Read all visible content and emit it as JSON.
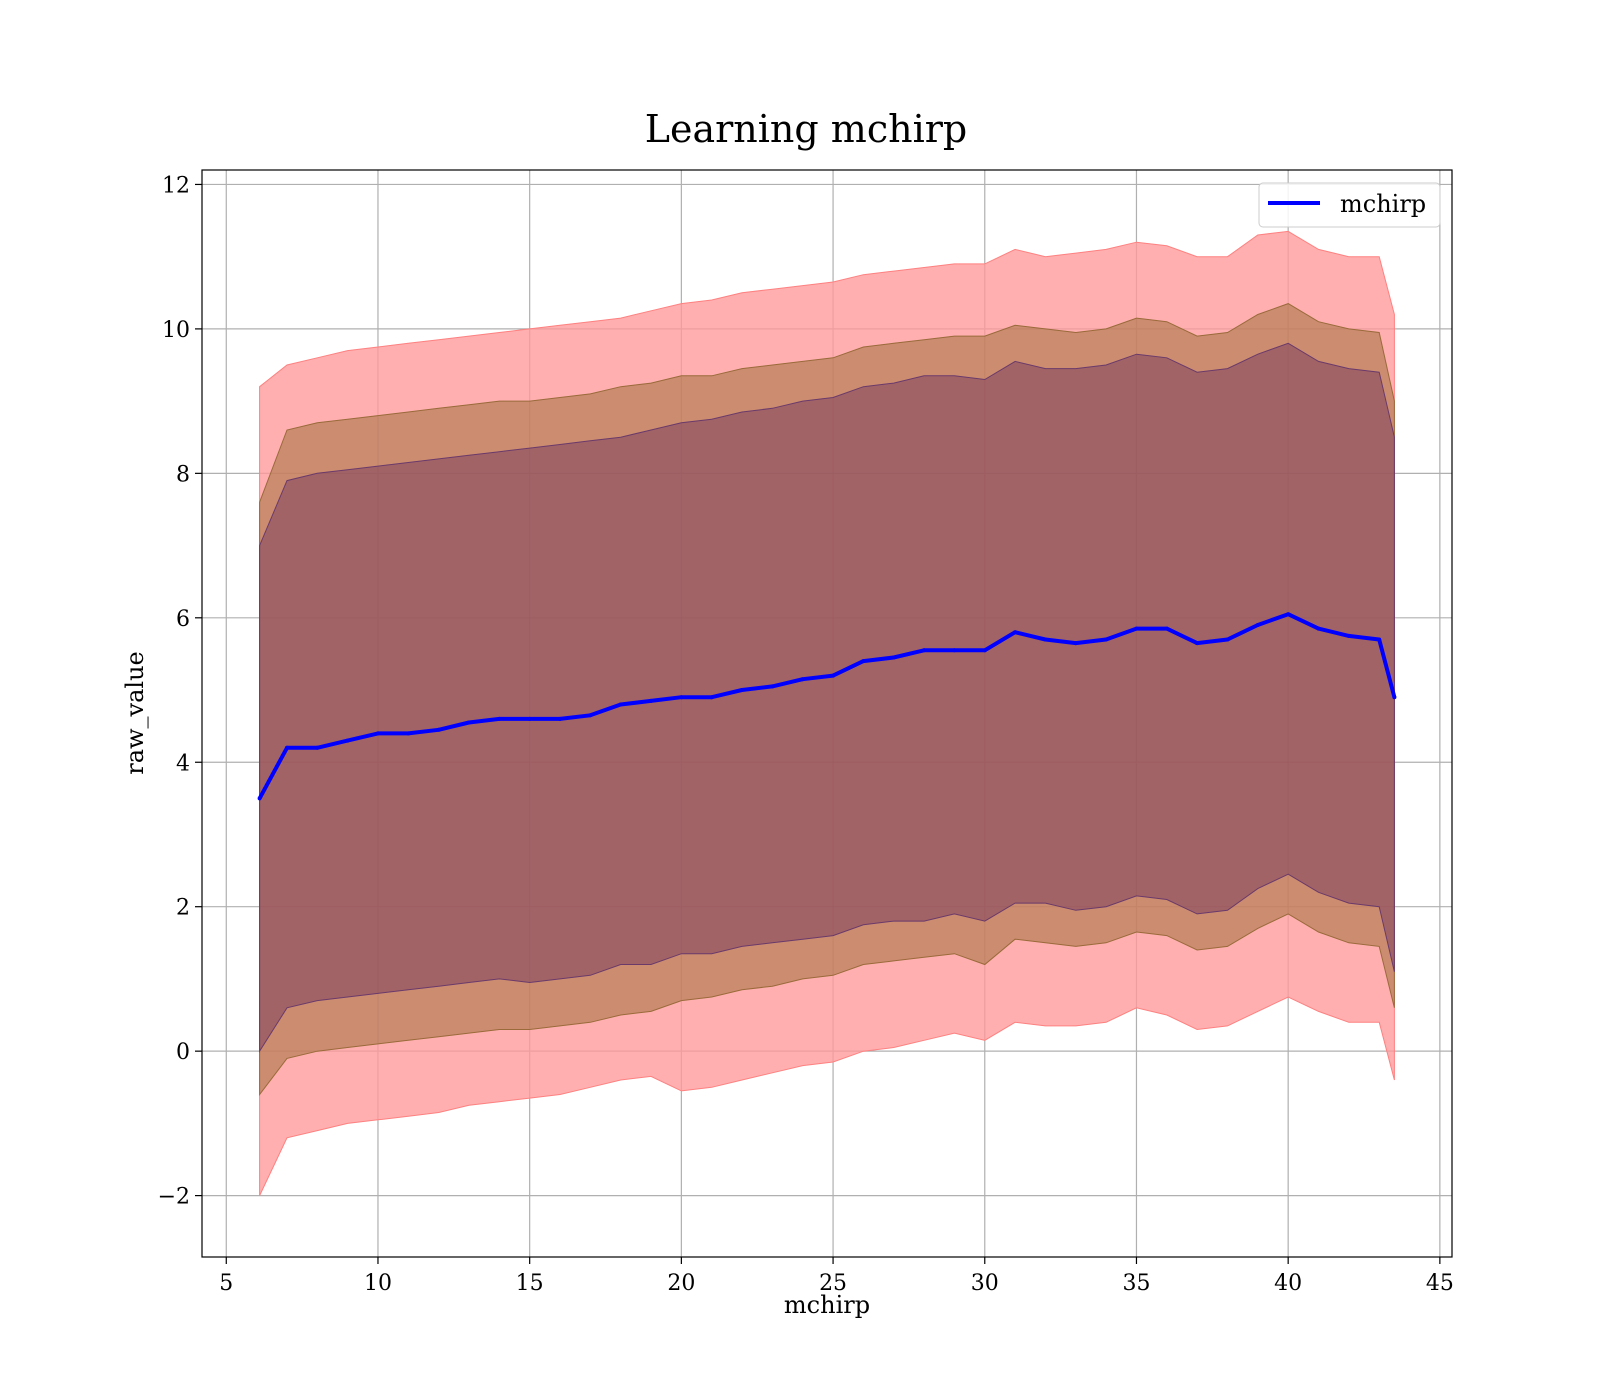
{
  "chart_data": {
    "type": "line",
    "title": "Learning mchirp",
    "xlabel": "mchirp",
    "ylabel": "raw_value",
    "xlim": [
      4.2,
      45.4
    ],
    "ylim": [
      -2.85,
      12.2
    ],
    "xticks": [
      5,
      10,
      15,
      20,
      25,
      30,
      35,
      40,
      45
    ],
    "yticks": [
      -2,
      0,
      2,
      4,
      6,
      8,
      10,
      12
    ],
    "xtick_labels": [
      "5",
      "10",
      "15",
      "20",
      "25",
      "30",
      "35",
      "40",
      "45"
    ],
    "ytick_labels": [
      "−2",
      "0",
      "2",
      "4",
      "6",
      "8",
      "10",
      "12"
    ],
    "grid": true,
    "legend": {
      "position": "top-right",
      "entries": [
        "mchirp"
      ]
    },
    "colors": {
      "line": "#0000ff",
      "band_outer": "#ff9999",
      "band_middle": "#a0703c",
      "band_inner": "#6a2a5a"
    },
    "x": [
      6.1,
      7,
      8,
      9,
      10,
      11,
      12,
      13,
      14,
      15,
      16,
      17,
      18,
      19,
      20,
      21,
      22,
      23,
      24,
      25,
      26,
      27,
      28,
      29,
      30,
      31,
      32,
      33,
      34,
      35,
      36,
      37,
      38,
      39,
      40,
      41,
      42,
      43,
      43.5
    ],
    "series": [
      {
        "name": "mchirp",
        "values": [
          3.5,
          4.2,
          4.2,
          4.3,
          4.4,
          4.4,
          4.45,
          4.55,
          4.6,
          4.6,
          4.6,
          4.65,
          4.8,
          4.85,
          4.9,
          4.9,
          5.0,
          5.05,
          5.15,
          5.2,
          5.4,
          5.45,
          5.55,
          5.55,
          5.55,
          5.8,
          5.7,
          5.65,
          5.7,
          5.85,
          5.85,
          5.65,
          5.7,
          5.9,
          6.05,
          5.85,
          5.75,
          5.7,
          4.9
        ]
      }
    ],
    "bands": [
      {
        "upper": [
          9.2,
          9.5,
          9.6,
          9.7,
          9.75,
          9.8,
          9.85,
          9.9,
          9.95,
          10.0,
          10.05,
          10.1,
          10.15,
          10.25,
          10.35,
          10.4,
          10.5,
          10.55,
          10.6,
          10.65,
          10.75,
          10.8,
          10.85,
          10.9,
          10.9,
          11.1,
          11.0,
          11.05,
          11.1,
          11.2,
          11.15,
          11.0,
          11.0,
          11.3,
          11.35,
          11.1,
          11.0,
          11.0,
          10.2
        ],
        "lower": [
          -2.0,
          -1.2,
          -1.1,
          -1.0,
          -0.95,
          -0.9,
          -0.85,
          -0.75,
          -0.7,
          -0.65,
          -0.6,
          -0.5,
          -0.4,
          -0.35,
          -0.55,
          -0.5,
          -0.4,
          -0.3,
          -0.2,
          -0.15,
          0.0,
          0.05,
          0.15,
          0.25,
          0.15,
          0.4,
          0.35,
          0.35,
          0.4,
          0.6,
          0.5,
          0.3,
          0.35,
          0.55,
          0.75,
          0.55,
          0.4,
          0.4,
          -0.4
        ]
      },
      {
        "upper": [
          7.6,
          8.6,
          8.7,
          8.75,
          8.8,
          8.85,
          8.9,
          8.95,
          9.0,
          9.0,
          9.05,
          9.1,
          9.2,
          9.25,
          9.35,
          9.35,
          9.45,
          9.5,
          9.55,
          9.6,
          9.75,
          9.8,
          9.85,
          9.9,
          9.9,
          10.05,
          10.0,
          9.95,
          10.0,
          10.15,
          10.1,
          9.9,
          9.95,
          10.2,
          10.35,
          10.1,
          10.0,
          9.95,
          9.0
        ],
        "lower": [
          -0.6,
          -0.1,
          0.0,
          0.05,
          0.1,
          0.15,
          0.2,
          0.25,
          0.3,
          0.3,
          0.35,
          0.4,
          0.5,
          0.55,
          0.7,
          0.75,
          0.85,
          0.9,
          1.0,
          1.05,
          1.2,
          1.25,
          1.3,
          1.35,
          1.2,
          1.55,
          1.5,
          1.45,
          1.5,
          1.65,
          1.6,
          1.4,
          1.45,
          1.7,
          1.9,
          1.65,
          1.5,
          1.45,
          0.6
        ]
      },
      {
        "upper": [
          7.0,
          7.9,
          8.0,
          8.05,
          8.1,
          8.15,
          8.2,
          8.25,
          8.3,
          8.35,
          8.4,
          8.45,
          8.5,
          8.6,
          8.7,
          8.75,
          8.85,
          8.9,
          9.0,
          9.05,
          9.2,
          9.25,
          9.35,
          9.35,
          9.3,
          9.55,
          9.45,
          9.45,
          9.5,
          9.65,
          9.6,
          9.4,
          9.45,
          9.65,
          9.8,
          9.55,
          9.45,
          9.4,
          8.5
        ]
      }
    ]
  }
}
